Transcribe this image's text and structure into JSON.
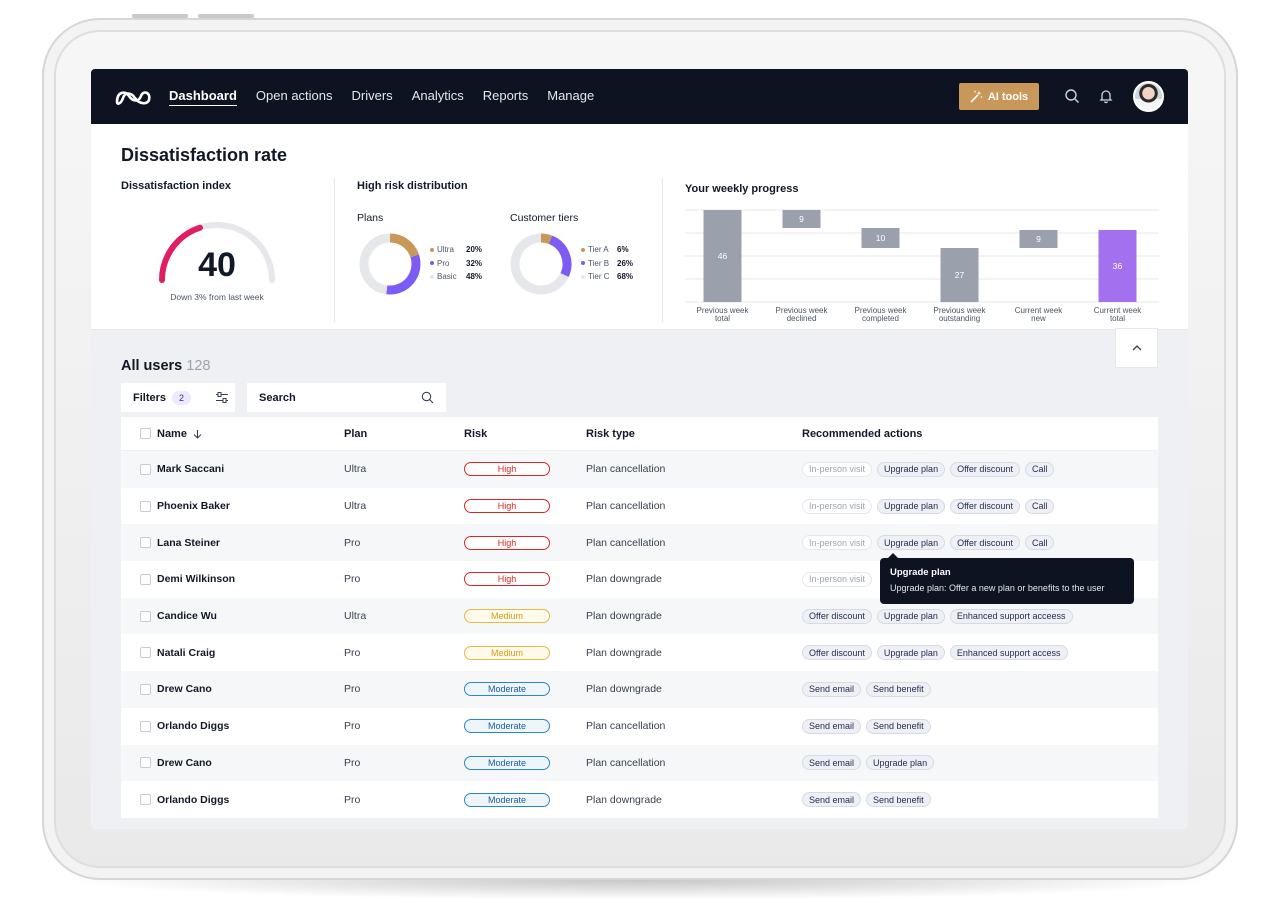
{
  "nav": {
    "links": [
      "Dashboard",
      "Open actions",
      "Drivers",
      "Analytics",
      "Reports",
      "Manage"
    ],
    "ai_tools_label": "AI tools"
  },
  "stats": {
    "title": "Dissatisfaction rate",
    "index": {
      "label": "Dissatisfaction index",
      "value": "40",
      "caption": "Down 3% from last week",
      "progress": 0.4
    },
    "distribution": {
      "label": "High risk distribution",
      "plans": {
        "label": "Plans",
        "items": [
          {
            "name": "Ultra",
            "value": "20%",
            "color": "#c8975a"
          },
          {
            "name": "Pro",
            "value": "32%",
            "color": "#7c5cf5"
          },
          {
            "name": "Basic",
            "value": "48%",
            "color": "#e5e7eb"
          }
        ]
      },
      "tiers": {
        "label": "Customer tiers",
        "items": [
          {
            "name": "Tier A",
            "value": "6%",
            "color": "#c8975a"
          },
          {
            "name": "Tier B",
            "value": "26%",
            "color": "#7c5cf5"
          },
          {
            "name": "Tier C",
            "value": "68%",
            "color": "#e5e7eb"
          }
        ]
      }
    },
    "weekly": {
      "label": "Your weekly progress"
    }
  },
  "chart_data": {
    "type": "bar",
    "title": "Your weekly progress",
    "categories": [
      "Previous week total",
      "Previous week declined",
      "Previous week completed",
      "Previous week outstanding",
      "Current week new",
      "Current week total"
    ],
    "values": [
      46,
      9,
      10,
      27,
      9,
      36
    ],
    "colors": [
      "#9aa1ad",
      "#9aa1ad",
      "#9aa1ad",
      "#9aa1ad",
      "#9aa1ad",
      "#a370f0"
    ],
    "grid": true
  },
  "users": {
    "title": "All users",
    "count": "128",
    "filters_label": "Filters",
    "filters_count": "2",
    "search_label": "Search",
    "columns": [
      "Name",
      "Plan",
      "Risk",
      "Risk type",
      "Recommended actions"
    ],
    "rows": [
      {
        "name": "Mark Saccani",
        "plan": "Ultra",
        "risk": "High",
        "risk_type": "Plan cancellation",
        "actions": [
          "In-person visit",
          "Upgrade plan",
          "Offer discount",
          "Call"
        ]
      },
      {
        "name": "Phoenix Baker",
        "plan": "Ultra",
        "risk": "High",
        "risk_type": "Plan cancellation",
        "actions": [
          "In-person visit",
          "Upgrade plan",
          "Offer discount",
          "Call"
        ]
      },
      {
        "name": "Lana Steiner",
        "plan": "Pro",
        "risk": "High",
        "risk_type": "Plan cancellation",
        "actions": [
          "In-person visit",
          "Upgrade plan",
          "Offer discount",
          "Call"
        ]
      },
      {
        "name": "Demi Wilkinson",
        "plan": "Pro",
        "risk": "High",
        "risk_type": "Plan downgrade",
        "actions": [
          "In-person visit"
        ]
      },
      {
        "name": "Candice Wu",
        "plan": "Ultra",
        "risk": "Medium",
        "risk_type": "Plan downgrade",
        "actions": [
          "Offer discount",
          "Upgrade plan",
          "Enhanced support acceess"
        ]
      },
      {
        "name": "Natali Craig",
        "plan": "Pro",
        "risk": "Medium",
        "risk_type": "Plan downgrade",
        "actions": [
          "Offer discount",
          "Upgrade plan",
          "Enhanced support access"
        ]
      },
      {
        "name": "Drew Cano",
        "plan": "Pro",
        "risk": "Moderate",
        "risk_type": "Plan downgrade",
        "actions": [
          "Send email",
          "Send benefit"
        ]
      },
      {
        "name": "Orlando Diggs",
        "plan": "Pro",
        "risk": "Moderate",
        "risk_type": "Plan cancellation",
        "actions": [
          "Send email",
          "Send benefit"
        ]
      },
      {
        "name": "Drew Cano",
        "plan": "Pro",
        "risk": "Moderate",
        "risk_type": "Plan cancellation",
        "actions": [
          "Send email",
          "Upgrade plan"
        ]
      },
      {
        "name": "Orlando Diggs",
        "plan": "Pro",
        "risk": "Moderate",
        "risk_type": "Plan downgrade",
        "actions": [
          "Send email",
          "Send benefit"
        ]
      }
    ]
  },
  "tooltip": {
    "title": "Upgrade plan",
    "body": "Upgrade plan: Offer a new plan or benefits to the user"
  }
}
